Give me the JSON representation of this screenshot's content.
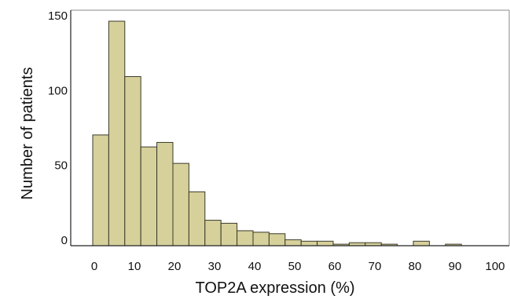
{
  "chart_data": {
    "type": "bar",
    "xlabel": "TOP2A expression (%)",
    "ylabel": "Number of patients",
    "x_ticks": [
      "0",
      "10",
      "20",
      "30",
      "40",
      "50",
      "60",
      "70",
      "80",
      "90",
      "100"
    ],
    "y_ticks": [
      "0",
      "50",
      "100",
      "150"
    ],
    "xlim": [
      -5,
      105
    ],
    "ylim": [
      0,
      155
    ],
    "bin_width": 4,
    "bins": [
      {
        "start": 0,
        "value": 74
      },
      {
        "start": 4,
        "value": 150
      },
      {
        "start": 8,
        "value": 113
      },
      {
        "start": 12,
        "value": 66
      },
      {
        "start": 16,
        "value": 69
      },
      {
        "start": 20,
        "value": 55
      },
      {
        "start": 24,
        "value": 36
      },
      {
        "start": 28,
        "value": 17
      },
      {
        "start": 32,
        "value": 15
      },
      {
        "start": 36,
        "value": 10
      },
      {
        "start": 40,
        "value": 9
      },
      {
        "start": 44,
        "value": 8
      },
      {
        "start": 48,
        "value": 4
      },
      {
        "start": 52,
        "value": 3
      },
      {
        "start": 56,
        "value": 3
      },
      {
        "start": 60,
        "value": 1
      },
      {
        "start": 64,
        "value": 2
      },
      {
        "start": 68,
        "value": 2
      },
      {
        "start": 72,
        "value": 1
      },
      {
        "start": 80,
        "value": 3
      },
      {
        "start": 88,
        "value": 1
      }
    ],
    "bar_fill": "#d6d09b",
    "bar_stroke": "#3a3a2a",
    "grid": false,
    "legend": "none"
  }
}
